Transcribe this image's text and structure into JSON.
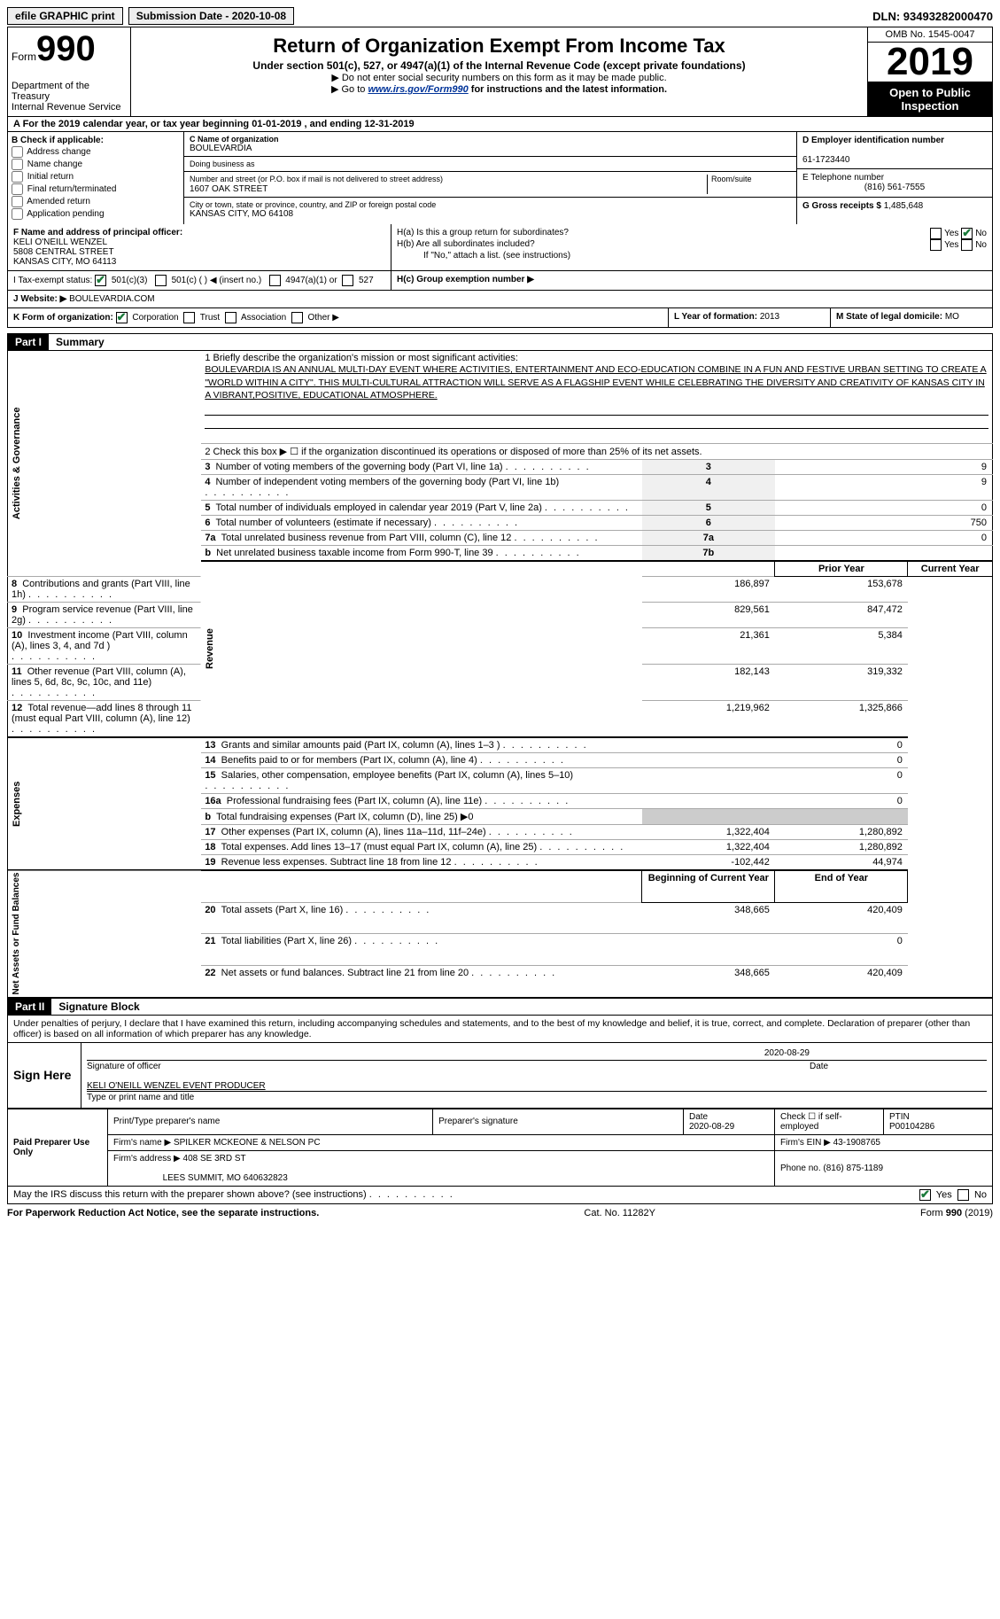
{
  "topbar": {
    "efile": "efile GRAPHIC print",
    "submission_label": "Submission Date - 2020-10-08",
    "dln": "DLN: 93493282000470"
  },
  "header": {
    "form_word": "Form",
    "form_number": "990",
    "dept": "Department of the Treasury",
    "irs": "Internal Revenue Service",
    "title": "Return of Organization Exempt From Income Tax",
    "subtitle": "Under section 501(c), 527, or 4947(a)(1) of the Internal Revenue Code (except private foundations)",
    "note1": "▶ Do not enter social security numbers on this form as it may be made public.",
    "note2_pre": "▶ Go to ",
    "note2_link": "www.irs.gov/Form990",
    "note2_post": " for instructions and the latest information.",
    "omb": "OMB No. 1545-0047",
    "year": "2019",
    "inspection": "Open to Public Inspection"
  },
  "row_a": "A For the 2019 calendar year, or tax year beginning 01-01-2019    , and ending 12-31-2019",
  "box_b": {
    "label": "B Check if applicable:",
    "opts": [
      "Address change",
      "Name change",
      "Initial return",
      "Final return/terminated",
      "Amended return",
      "Application pending"
    ]
  },
  "box_c": {
    "name_label": "C Name of organization",
    "name": "BOULEVARDIA",
    "dba_label": "Doing business as",
    "dba": "",
    "street_label": "Number and street (or P.O. box if mail is not delivered to street address)",
    "room_label": "Room/suite",
    "street": "1607 OAK STREET",
    "city_label": "City or town, state or province, country, and ZIP or foreign postal code",
    "city": "KANSAS CITY, MO  64108"
  },
  "box_d": {
    "label": "D Employer identification number",
    "value": "61-1723440"
  },
  "box_e": {
    "label": "E Telephone number",
    "value": "(816) 561-7555"
  },
  "box_g": {
    "label": "G Gross receipts $",
    "value": "1,485,648"
  },
  "box_f": {
    "label": "F  Name and address of principal officer:",
    "name": "KELI O'NEILL WENZEL",
    "street": "5808 CENTRAL STREET",
    "city": "KANSAS CITY, MO  64113"
  },
  "box_h": {
    "a": "H(a)  Is this a group return for subordinates?",
    "a_yes": "Yes",
    "a_no": "No",
    "b": "H(b)  Are all subordinates included?",
    "b_note": "If \"No,\" attach a list. (see instructions)",
    "c": "H(c)  Group exemption number ▶"
  },
  "box_i": {
    "label": "I   Tax-exempt status:",
    "o1": "501(c)(3)",
    "o2": "501(c) (  ) ◀ (insert no.)",
    "o3": "4947(a)(1) or",
    "o4": "527"
  },
  "box_j": {
    "label": "J   Website: ▶",
    "value": "BOULEVARDIA.COM"
  },
  "box_k": {
    "label": "K Form of organization:",
    "o1": "Corporation",
    "o2": "Trust",
    "o3": "Association",
    "o4": "Other ▶"
  },
  "box_l": {
    "label": "L Year of formation:",
    "value": "2013"
  },
  "box_m": {
    "label": "M State of legal domicile:",
    "value": "MO"
  },
  "part1": {
    "tag": "Part I",
    "title": "Summary"
  },
  "summary": {
    "line1_label": "1   Briefly describe the organization's mission or most significant activities:",
    "mission": "BOULEVARDIA IS AN ANNUAL MULTI-DAY EVENT WHERE ACTIVITIES, ENTERTAINMENT AND ECO-EDUCATION COMBINE IN A FUN AND FESTIVE URBAN SETTING TO CREATE A \"WORLD WITHIN A CITY\". THIS MULTI-CULTURAL ATTRACTION WILL SERVE AS A FLAGSHIP EVENT WHILE CELEBRATING THE DIVERSITY AND CREATIVITY OF KANSAS CITY IN A VIBRANT,POSITIVE, EDUCATIONAL ATMOSPHERE.",
    "line2": "2   Check this box ▶ ☐  if the organization discontinued its operations or disposed of more than 25% of its net assets.",
    "sections": {
      "ag": "Activities & Governance",
      "rev": "Revenue",
      "exp": "Expenses",
      "na": "Net Assets or Fund Balances"
    },
    "cols": {
      "prior": "Prior Year",
      "current": "Current Year",
      "boy": "Beginning of Current Year",
      "eoy": "End of Year"
    },
    "rows_simple": [
      {
        "n": "3",
        "t": "Number of voting members of the governing body (Part VI, line 1a)",
        "box": "3",
        "v": "9"
      },
      {
        "n": "4",
        "t": "Number of independent voting members of the governing body (Part VI, line 1b)",
        "box": "4",
        "v": "9"
      },
      {
        "n": "5",
        "t": "Total number of individuals employed in calendar year 2019 (Part V, line 2a)",
        "box": "5",
        "v": "0"
      },
      {
        "n": "6",
        "t": "Total number of volunteers (estimate if necessary)",
        "box": "6",
        "v": "750"
      },
      {
        "n": "7a",
        "t": "Total unrelated business revenue from Part VIII, column (C), line 12",
        "box": "7a",
        "v": "0"
      },
      {
        "n": "b",
        "t": "Net unrelated business taxable income from Form 990-T, line 39",
        "box": "7b",
        "v": ""
      }
    ],
    "rows_rev": [
      {
        "n": "8",
        "t": "Contributions and grants (Part VIII, line 1h)",
        "p": "186,897",
        "c": "153,678"
      },
      {
        "n": "9",
        "t": "Program service revenue (Part VIII, line 2g)",
        "p": "829,561",
        "c": "847,472"
      },
      {
        "n": "10",
        "t": "Investment income (Part VIII, column (A), lines 3, 4, and 7d )",
        "p": "21,361",
        "c": "5,384"
      },
      {
        "n": "11",
        "t": "Other revenue (Part VIII, column (A), lines 5, 6d, 8c, 9c, 10c, and 11e)",
        "p": "182,143",
        "c": "319,332"
      },
      {
        "n": "12",
        "t": "Total revenue—add lines 8 through 11 (must equal Part VIII, column (A), line 12)",
        "p": "1,219,962",
        "c": "1,325,866"
      }
    ],
    "rows_exp": [
      {
        "n": "13",
        "t": "Grants and similar amounts paid (Part IX, column (A), lines 1–3 )",
        "p": "",
        "c": "0"
      },
      {
        "n": "14",
        "t": "Benefits paid to or for members (Part IX, column (A), line 4)",
        "p": "",
        "c": "0"
      },
      {
        "n": "15",
        "t": "Salaries, other compensation, employee benefits (Part IX, column (A), lines 5–10)",
        "p": "",
        "c": "0"
      },
      {
        "n": "16a",
        "t": "Professional fundraising fees (Part IX, column (A), line 11e)",
        "p": "",
        "c": "0"
      },
      {
        "n": "b",
        "t": "Total fundraising expenses (Part IX, column (D), line 25) ▶0",
        "p": "—",
        "c": "—"
      },
      {
        "n": "17",
        "t": "Other expenses (Part IX, column (A), lines 11a–11d, 11f–24e)",
        "p": "1,322,404",
        "c": "1,280,892"
      },
      {
        "n": "18",
        "t": "Total expenses. Add lines 13–17 (must equal Part IX, column (A), line 25)",
        "p": "1,322,404",
        "c": "1,280,892"
      },
      {
        "n": "19",
        "t": "Revenue less expenses. Subtract line 18 from line 12",
        "p": "-102,442",
        "c": "44,974"
      }
    ],
    "rows_na": [
      {
        "n": "20",
        "t": "Total assets (Part X, line 16)",
        "p": "348,665",
        "c": "420,409"
      },
      {
        "n": "21",
        "t": "Total liabilities (Part X, line 26)",
        "p": "",
        "c": "0"
      },
      {
        "n": "22",
        "t": "Net assets or fund balances. Subtract line 21 from line 20",
        "p": "348,665",
        "c": "420,409"
      }
    ]
  },
  "part2": {
    "tag": "Part II",
    "title": "Signature Block"
  },
  "sig": {
    "perjury": "Under penalties of perjury, I declare that I have examined this return, including accompanying schedules and statements, and to the best of my knowledge and belief, it is true, correct, and complete. Declaration of preparer (other than officer) is based on all information of which preparer has any knowledge.",
    "sign_here": "Sign Here",
    "sig_officer": "Signature of officer",
    "date": "Date",
    "sig_date": "2020-08-29",
    "name_title": "KELI O'NEILL WENZEL  EVENT PRODUCER",
    "name_title_label": "Type or print name and title"
  },
  "paid": {
    "label": "Paid Preparer Use Only",
    "h_name": "Print/Type preparer's name",
    "h_sig": "Preparer's signature",
    "h_date": "Date",
    "date": "2020-08-29",
    "check": "Check ☐ if self-employed",
    "ptin_label": "PTIN",
    "ptin": "P00104286",
    "firm_name_l": "Firm's name    ▶",
    "firm_name": "SPILKER MCKEONE & NELSON PC",
    "firm_ein_l": "Firm's EIN ▶",
    "firm_ein": "43-1908765",
    "firm_addr_l": "Firm's address ▶",
    "firm_addr1": "408 SE 3RD ST",
    "firm_addr2": "LEES SUMMIT, MO  640632823",
    "phone_l": "Phone no.",
    "phone": "(816) 875-1189"
  },
  "discuss": {
    "q": "May the IRS discuss this return with the preparer shown above? (see instructions)",
    "yes": "Yes",
    "no": "No"
  },
  "footer": {
    "left": "For Paperwork Reduction Act Notice, see the separate instructions.",
    "mid": "Cat. No. 11282Y",
    "right": "Form 990 (2019)"
  },
  "colors": {
    "link": "#003399",
    "check_green": "#1a7a3a"
  }
}
